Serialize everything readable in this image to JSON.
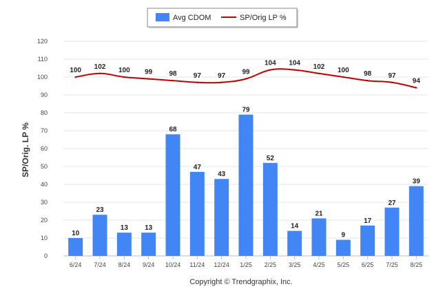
{
  "chart_data": {
    "type": "bar",
    "categories": [
      "6/24",
      "7/24",
      "8/24",
      "9/24",
      "10/24",
      "11/24",
      "12/24",
      "1/25",
      "2/25",
      "3/25",
      "4/25",
      "5/25",
      "6/25",
      "7/25",
      "8/25"
    ],
    "series": [
      {
        "name": "Avg CDOM",
        "type": "bar",
        "color": "#4285f4",
        "values": [
          10,
          23,
          13,
          13,
          68,
          47,
          43,
          79,
          52,
          14,
          21,
          9,
          17,
          27,
          39
        ]
      },
      {
        "name": "SP/Orig LP %",
        "type": "line",
        "color": "#c00000",
        "values": [
          100,
          102,
          100,
          99,
          98,
          97,
          97,
          99,
          104,
          104,
          102,
          100,
          98,
          97,
          94
        ]
      }
    ],
    "ylabel": "SP/Orig. LP %",
    "xlabel": "",
    "ylim": [
      0,
      120
    ],
    "yticks": [
      0,
      10,
      20,
      30,
      40,
      50,
      60,
      70,
      80,
      90,
      100,
      110,
      120
    ],
    "grid": true,
    "legend_position": "top-center",
    "footer": "Copyright © Trendgraphix, Inc."
  }
}
